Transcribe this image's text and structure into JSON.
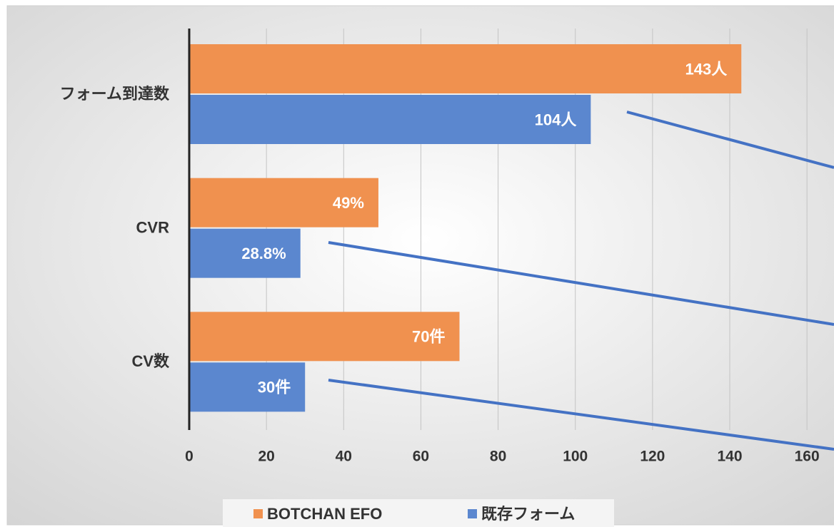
{
  "chart_data": {
    "type": "bar",
    "orientation": "horizontal",
    "categories": [
      "フォーム到達数",
      "CVR",
      "CV数"
    ],
    "series": [
      {
        "name": "BOTCHAN EFO",
        "color": "#f0914f",
        "values": [
          143,
          49,
          70
        ],
        "value_labels": [
          "143人",
          "49%",
          "70件"
        ]
      },
      {
        "name": "既存フォーム",
        "color": "#5b87cf",
        "values": [
          104,
          28.8,
          30
        ],
        "value_labels": [
          "104人",
          "28.8%",
          "30件"
        ]
      }
    ],
    "xlim": [
      0,
      167
    ],
    "xticks": [
      0,
      20,
      40,
      60,
      80,
      100,
      120,
      140,
      160
    ],
    "grid": true,
    "legend": "bottom"
  }
}
